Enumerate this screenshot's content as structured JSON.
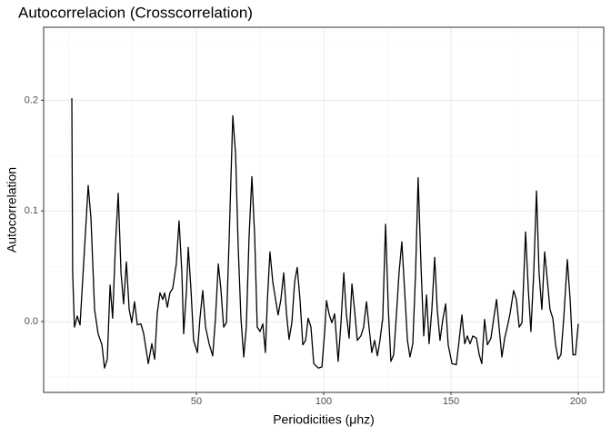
{
  "chart_data": {
    "type": "line",
    "title": "Autocorrelacion (Crosscorrelation)",
    "x_label": "Periodicities (μhz)",
    "y_label": "Autocorrelation",
    "xlim": [
      -10,
      210
    ],
    "ylim": [
      -0.064,
      0.266
    ],
    "xticks": [
      50,
      100,
      150,
      200
    ],
    "yticks": [
      {
        "value": 0,
        "label": "0.0"
      },
      0.1,
      0.2
    ],
    "xminor": [
      0,
      25,
      75,
      125,
      175
    ],
    "yminor": [
      -0.05,
      0.05,
      0.15,
      0.25
    ],
    "grid": true,
    "series": [
      {
        "color": "#000000",
        "x": [
          1.07,
          1.4,
          2.1,
          3.2,
          4.3,
          5.7,
          7.5,
          8.6,
          10,
          11.4,
          12.9,
          13.9,
          15,
          16.1,
          17.1,
          18.2,
          19.3,
          20.4,
          21.4,
          22.5,
          23.6,
          24.6,
          25.7,
          26.8,
          28.2,
          29.3,
          31.1,
          32.5,
          33.6,
          34.6,
          35.7,
          36.8,
          37.5,
          38.6,
          39.6,
          40.7,
          42.1,
          43.2,
          44.3,
          45,
          46.1,
          46.8,
          47.9,
          48.9,
          50.4,
          51.4,
          52.5,
          53.6,
          55,
          56.4,
          57.5,
          58.6,
          59.6,
          60.7,
          61.8,
          62.9,
          64.3,
          65.4,
          66.4,
          67.5,
          68.6,
          69.6,
          70.7,
          71.8,
          72.9,
          73.9,
          75,
          76.1,
          77.1,
          77.9,
          78.9,
          80,
          81.1,
          82.1,
          83.2,
          84.3,
          85.4,
          86.4,
          87.5,
          88.6,
          89.6,
          90.7,
          91.8,
          92.9,
          93.9,
          95,
          96.1,
          97.9,
          99.3,
          100.4,
          101.1,
          102.1,
          103.2,
          104.3,
          105.7,
          106.8,
          107.9,
          108.9,
          110,
          111.1,
          112.1,
          113.2,
          114.6,
          115.7,
          116.8,
          117.9,
          118.9,
          120,
          121.1,
          122.1,
          123.2,
          124.3,
          125.4,
          126.4,
          127.5,
          128.6,
          129.6,
          130.7,
          131.8,
          132.9,
          133.9,
          135,
          136.1,
          137.1,
          138.2,
          139.3,
          140.4,
          141.4,
          142.5,
          143.6,
          144.6,
          145.7,
          146.8,
          147.9,
          148.9,
          150.4,
          152.1,
          153.2,
          154.3,
          155.4,
          156.4,
          157.5,
          158.6,
          160,
          161.1,
          162.1,
          163.2,
          164.3,
          165.7,
          166.8,
          167.9,
          168.9,
          170,
          171.1,
          172.1,
          173.2,
          174.6,
          175.7,
          176.8,
          177.9,
          179.3,
          180.4,
          181.4,
          182.5,
          183.6,
          184.6,
          185.7,
          186.8,
          187.9,
          188.9,
          190,
          191.1,
          192.1,
          193.2,
          194.3,
          195.7,
          196.8,
          197.9,
          198.9,
          200
        ],
        "values": [
          0.202,
          0.044,
          -0.005,
          0.005,
          -0.003,
          0.052,
          0.123,
          0.093,
          0.011,
          -0.011,
          -0.021,
          -0.042,
          -0.034,
          0.033,
          0.003,
          0.069,
          0.116,
          0.044,
          0.016,
          0.054,
          0.011,
          -0.001,
          0.018,
          -0.003,
          -0.002,
          -0.011,
          -0.038,
          -0.02,
          -0.034,
          0.007,
          0.026,
          0.02,
          0.026,
          0.013,
          0.026,
          0.03,
          0.052,
          0.091,
          0.044,
          -0.011,
          0.028,
          0.067,
          0.028,
          -0.017,
          -0.028,
          0.003,
          0.028,
          -0.005,
          -0.02,
          -0.031,
          0.003,
          0.052,
          0.03,
          -0.005,
          -0.001,
          0.077,
          0.186,
          0.151,
          0.069,
          0.003,
          -0.032,
          -0.005,
          0.077,
          0.131,
          0.077,
          -0.005,
          -0.009,
          -0.002,
          -0.028,
          0.02,
          0.063,
          0.036,
          0.02,
          0.006,
          0.02,
          0.044,
          0.007,
          -0.016,
          -0.001,
          0.036,
          0.049,
          0.02,
          -0.021,
          -0.017,
          0.003,
          -0.005,
          -0.038,
          -0.042,
          -0.041,
          -0.009,
          0.019,
          0.007,
          -0.001,
          0.007,
          -0.036,
          -0.001,
          0.044,
          0.007,
          -0.015,
          0.034,
          0.011,
          -0.017,
          -0.013,
          -0.005,
          0.018,
          -0.007,
          -0.028,
          -0.017,
          -0.031,
          -0.017,
          0.003,
          0.088,
          0.011,
          -0.036,
          -0.03,
          0.007,
          0.044,
          0.072,
          0.028,
          -0.017,
          -0.032,
          -0.02,
          0.044,
          0.13,
          0.052,
          -0.013,
          0.024,
          -0.02,
          0.011,
          0.058,
          0.011,
          -0.017,
          0.002,
          0.016,
          -0.021,
          -0.038,
          -0.039,
          -0.017,
          0.006,
          -0.02,
          -0.013,
          -0.02,
          -0.013,
          -0.015,
          -0.03,
          -0.038,
          0.002,
          -0.021,
          -0.015,
          0.003,
          0.02,
          -0.005,
          -0.032,
          -0.015,
          -0.005,
          0.007,
          0.028,
          0.02,
          -0.005,
          -0.001,
          0.081,
          0.028,
          -0.009,
          0.044,
          0.118,
          0.044,
          0.011,
          0.063,
          0.036,
          0.011,
          0.003,
          -0.021,
          -0.034,
          -0.03,
          0.003,
          0.056,
          0.02,
          -0.03,
          -0.03,
          -0.002
        ]
      }
    ]
  }
}
